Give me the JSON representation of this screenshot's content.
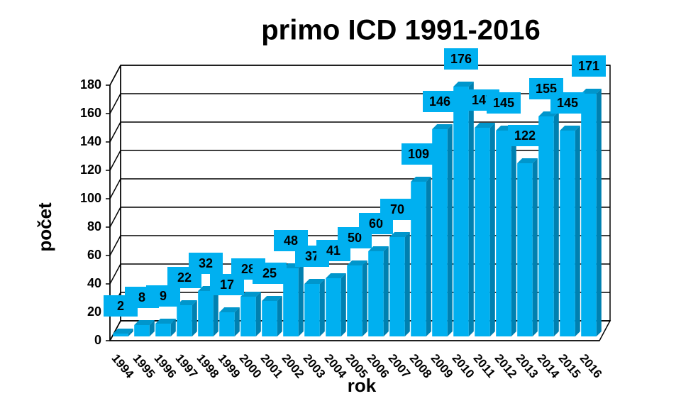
{
  "chart_data": {
    "type": "bar3d",
    "title": "primo ICD 1991-2016",
    "x_label": "rok",
    "y_label": "počet",
    "categories": [
      "1994",
      "1995",
      "1996",
      "1997",
      "1998",
      "1999",
      "2000",
      "2001",
      "2002",
      "2003",
      "2004",
      "2005",
      "2006",
      "2007",
      "2008",
      "2009",
      "2010",
      "2011",
      "2012",
      "2013",
      "2014",
      "2015",
      "2016"
    ],
    "values": [
      2,
      8,
      9,
      22,
      32,
      17,
      28,
      25,
      48,
      37,
      41,
      50,
      60,
      70,
      109,
      146,
      176,
      147,
      145,
      122,
      155,
      145,
      171
    ],
    "color": "#00b0f0",
    "ylim": [
      0,
      180
    ],
    "yticks": [
      0,
      20,
      40,
      60,
      80,
      100,
      120,
      140,
      160,
      180
    ],
    "grid": true
  }
}
